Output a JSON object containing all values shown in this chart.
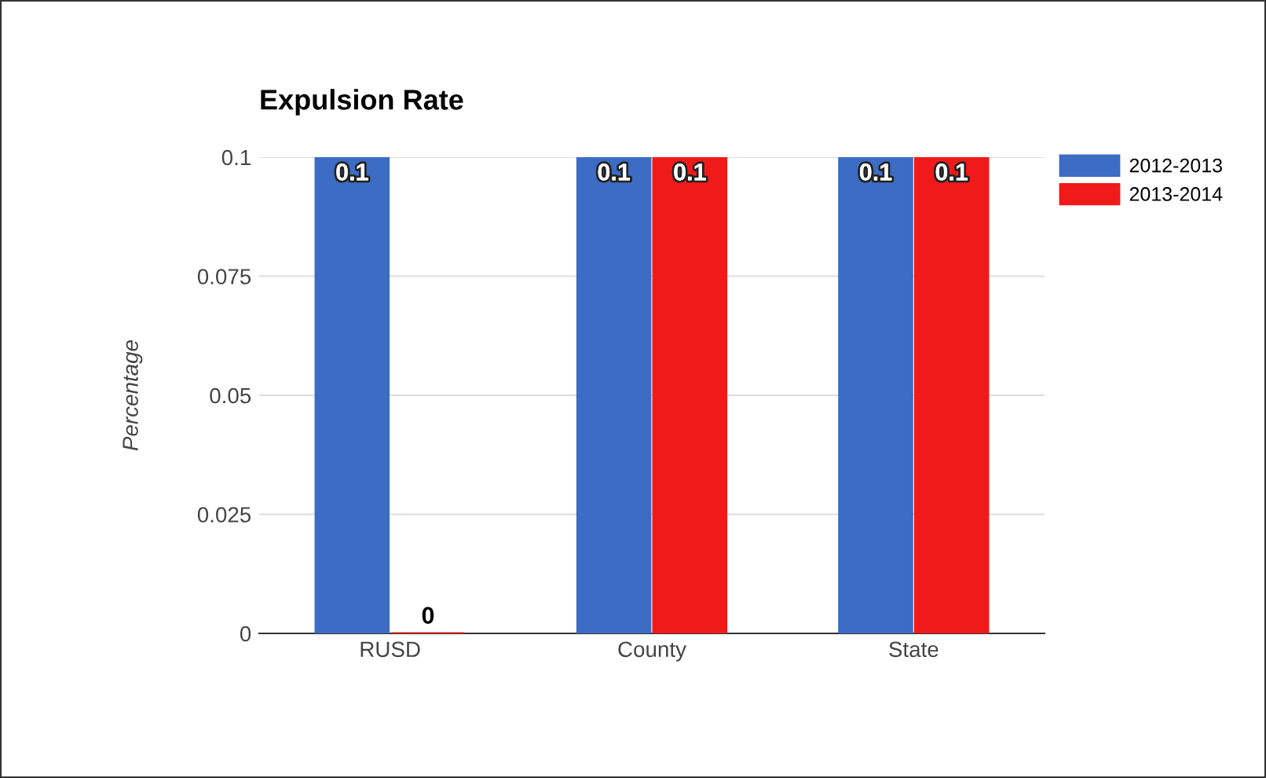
{
  "chart_data": {
    "type": "bar",
    "title": "Expulsion Rate",
    "ylabel": "Percentage",
    "categories": [
      "RUSD",
      "County",
      "State"
    ],
    "series": [
      {
        "name": "2012-2013",
        "color": "#3c6cc4",
        "values": [
          0.1,
          0.1,
          0.1
        ]
      },
      {
        "name": "2013-2014",
        "color": "#f01a1a",
        "values": [
          0,
          0.1,
          0.1
        ]
      }
    ],
    "ylim": [
      0,
      0.1
    ],
    "yticks": [
      0,
      0.025,
      0.05,
      0.075,
      0.1
    ],
    "grid": "y",
    "legend": "top right",
    "data_labels": true
  }
}
